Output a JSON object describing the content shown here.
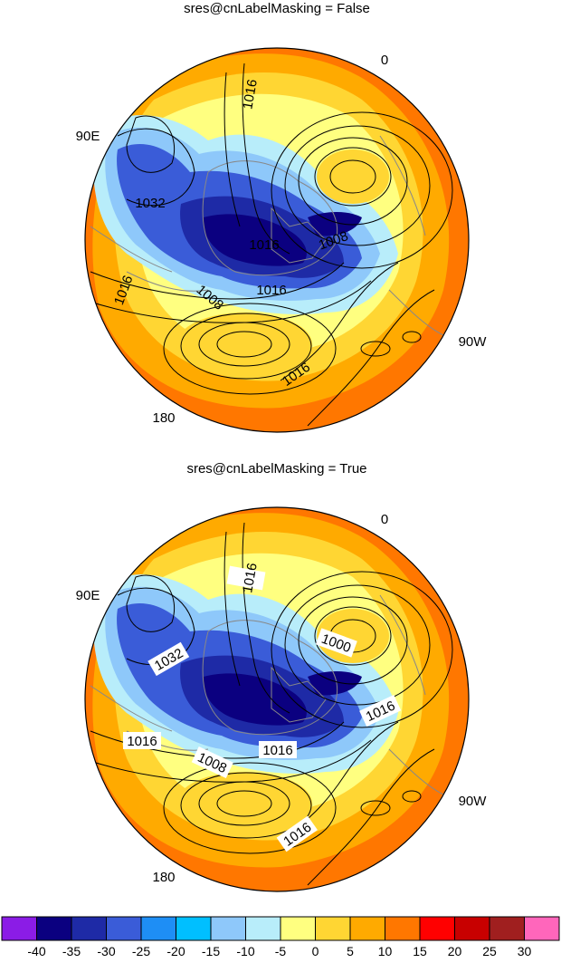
{
  "panels": [
    {
      "title": "sres@cnLabelMasking = False",
      "label_masking": false,
      "lon_labels": [
        "0",
        "90E",
        "180",
        "90W"
      ],
      "contour_labels": [
        "1016",
        "1032",
        "1016",
        "1008",
        "1016",
        "1008",
        "1016",
        "1016"
      ]
    },
    {
      "title": "sres@cnLabelMasking = True",
      "label_masking": true,
      "lon_labels": [
        "0",
        "90E",
        "180",
        "90W"
      ],
      "contour_labels": [
        "1016",
        "1000",
        "1032",
        "1016",
        "1016",
        "1008",
        "1016",
        "1016"
      ]
    }
  ],
  "colorbar": {
    "colors": [
      "#8b1ce6",
      "#0b0080",
      "#1e2aa6",
      "#3a5cd8",
      "#1e8ef5",
      "#00bfff",
      "#8ec8fa",
      "#b8edfa",
      "#ffff80",
      "#ffd633",
      "#ffaa00",
      "#ff7700",
      "#ff0000",
      "#c80000",
      "#a01f1f",
      "#ff66bb"
    ],
    "labels": [
      "-40",
      "-35",
      "-30",
      "-25",
      "-20",
      "-15",
      "-10",
      "-5",
      "0",
      "5",
      "10",
      "15",
      "20",
      "25",
      "30"
    ]
  },
  "colors": {
    "land_outline": "#888888",
    "contour": "#000000"
  }
}
